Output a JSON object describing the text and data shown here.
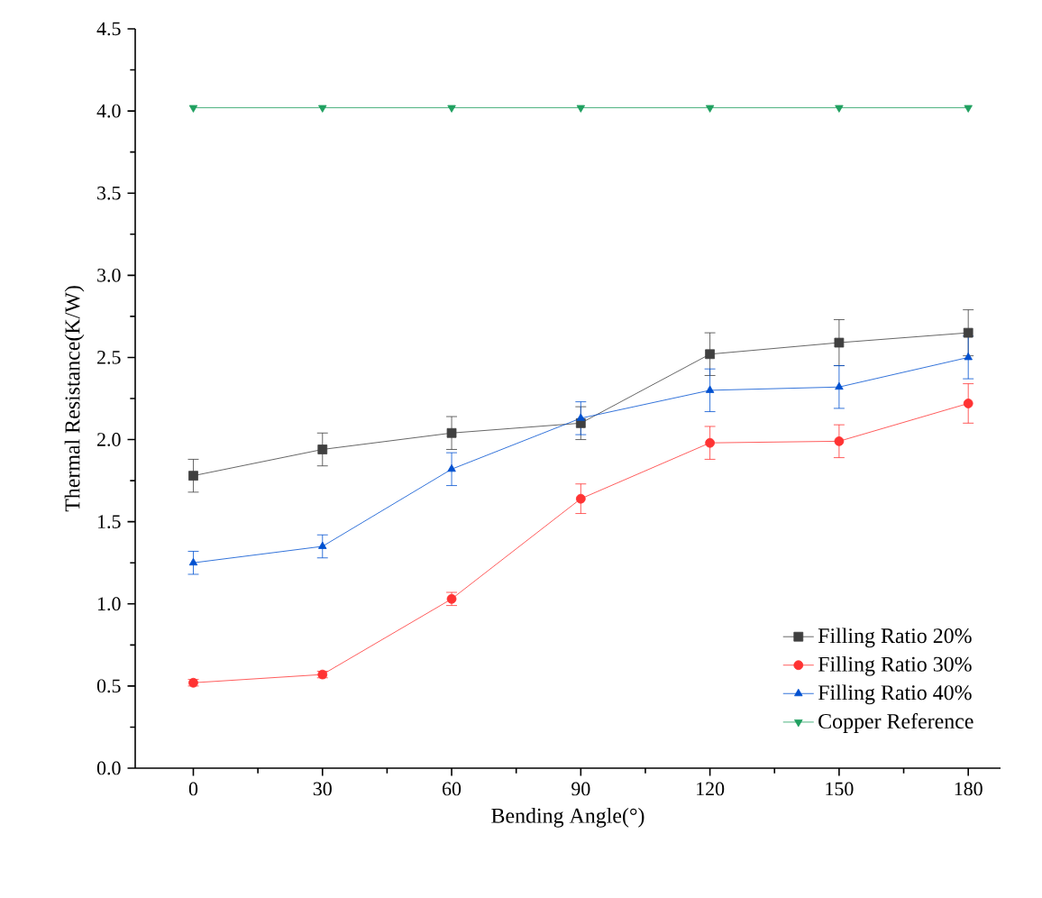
{
  "chart_data": {
    "type": "line",
    "xlabel": "Bending Angle(°)",
    "ylabel": "Thermal Resistance(K/W)",
    "x": [
      0,
      30,
      60,
      90,
      120,
      150,
      180
    ],
    "xlim": [
      -13.5,
      187.5
    ],
    "xticks": [
      0,
      30,
      60,
      90,
      120,
      150,
      180
    ],
    "ylim": [
      0,
      4.5
    ],
    "yticks": [
      {
        "value": 0,
        "label": "0.0"
      },
      {
        "value": 0.5,
        "label": "0.5"
      },
      {
        "value": 1,
        "label": "1.0"
      },
      {
        "value": 1.5,
        "label": "1.5"
      },
      {
        "value": 2,
        "label": "2.0"
      },
      {
        "value": 2.5,
        "label": "2.5"
      },
      {
        "value": 3,
        "label": "3.0"
      },
      {
        "value": 3.5,
        "label": "3.5"
      },
      {
        "value": 4,
        "label": "4.0"
      },
      {
        "value": 4.5,
        "label": "4.5"
      }
    ],
    "legend": "bottom right",
    "grid": false,
    "series": [
      {
        "name": "Filling Ratio 20%",
        "color": "#404040",
        "marker": "square",
        "values": [
          1.78,
          1.94,
          2.04,
          2.1,
          2.52,
          2.59,
          2.65
        ],
        "errors": [
          0.1,
          0.1,
          0.1,
          0.1,
          0.13,
          0.14,
          0.14
        ]
      },
      {
        "name": "Filling Ratio 30%",
        "color": "#ff3333",
        "marker": "circle",
        "values": [
          0.52,
          0.57,
          1.03,
          1.64,
          1.98,
          1.99,
          2.22
        ],
        "errors": [
          0.02,
          0.02,
          0.04,
          0.09,
          0.1,
          0.1,
          0.12
        ]
      },
      {
        "name": "Filling Ratio 40%",
        "color": "#0050d0",
        "marker": "triangle",
        "values": [
          1.25,
          1.35,
          1.82,
          2.13,
          2.3,
          2.32,
          2.5
        ],
        "errors": [
          0.07,
          0.07,
          0.1,
          0.1,
          0.13,
          0.13,
          0.13
        ]
      },
      {
        "name": "Copper Reference",
        "color": "#20a060",
        "marker": "triangle-down",
        "values": [
          4.02,
          4.02,
          4.02,
          4.02,
          4.02,
          4.02,
          4.02
        ]
      }
    ]
  }
}
